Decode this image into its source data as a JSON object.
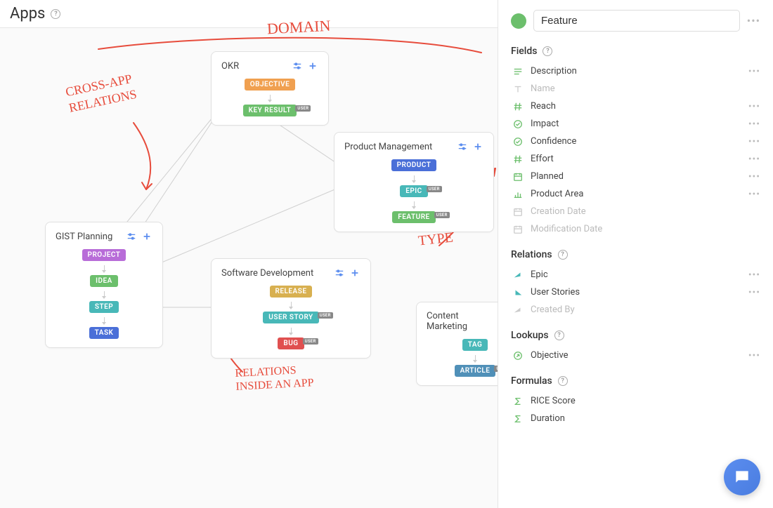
{
  "header": {
    "title": "Apps"
  },
  "annotations": {
    "domain": "DOMAIN",
    "cross_app": "CROSS-APP\nRELATIONS",
    "type": "TYPE",
    "inside_app": "RELATIONS\nINSIDE AN APP"
  },
  "cards": {
    "okr": {
      "title": "OKR",
      "chips": [
        {
          "label": "OBJECTIVE",
          "color": "#f0a050",
          "user": false
        },
        {
          "label": "KEY RESULT",
          "color": "#6cbf6c",
          "user": true
        }
      ]
    },
    "pm": {
      "title": "Product Management",
      "chips": [
        {
          "label": "PRODUCT",
          "color": "#4a6fd8",
          "user": false
        },
        {
          "label": "EPIC",
          "color": "#48b8b8",
          "user": true
        },
        {
          "label": "FEATURE",
          "color": "#6cbf6c",
          "user": true
        }
      ]
    },
    "gist": {
      "title": "GIST Planning",
      "chips": [
        {
          "label": "PROJECT",
          "color": "#b86cd8",
          "user": false
        },
        {
          "label": "IDEA",
          "color": "#6cbf6c",
          "user": false
        },
        {
          "label": "STEP",
          "color": "#48b8b8",
          "user": false
        },
        {
          "label": "TASK",
          "color": "#4a6fd8",
          "user": false
        }
      ]
    },
    "sw": {
      "title": "Software Development",
      "chips": [
        {
          "label": "RELEASE",
          "color": "#d8b050",
          "user": false
        },
        {
          "label": "USER STORY",
          "color": "#48b8b8",
          "user": true
        },
        {
          "label": "BUG",
          "color": "#e05050",
          "user": true
        }
      ]
    },
    "cm": {
      "title": "Content Marketing",
      "chips": [
        {
          "label": "TAG",
          "color": "#48b8b8",
          "user": false
        },
        {
          "label": "ARTICLE",
          "color": "#5090b8",
          "user": true
        }
      ]
    }
  },
  "side": {
    "dot_color": "#6cbf6c",
    "title_value": "Feature",
    "sections": {
      "fields": {
        "title": "Fields",
        "items": [
          {
            "icon": "text-lines",
            "label": "Description",
            "color": "#6cbf6c",
            "muted": false,
            "more": true
          },
          {
            "icon": "text-t",
            "label": "Name",
            "color": "#ccc",
            "muted": true,
            "more": false
          },
          {
            "icon": "hash",
            "label": "Reach",
            "color": "#6cbf6c",
            "muted": false,
            "more": true
          },
          {
            "icon": "check-circle",
            "label": "Impact",
            "color": "#6cbf6c",
            "muted": false,
            "more": true
          },
          {
            "icon": "check-circle",
            "label": "Confidence",
            "color": "#6cbf6c",
            "muted": false,
            "more": true
          },
          {
            "icon": "hash",
            "label": "Effort",
            "color": "#6cbf6c",
            "muted": false,
            "more": true
          },
          {
            "icon": "calendar",
            "label": "Planned",
            "color": "#6cbf6c",
            "muted": false,
            "more": true
          },
          {
            "icon": "bars",
            "label": "Product Area",
            "color": "#6cbf6c",
            "muted": false,
            "more": true
          },
          {
            "icon": "calendar",
            "label": "Creation Date",
            "color": "#ccc",
            "muted": true,
            "more": false
          },
          {
            "icon": "calendar",
            "label": "Modification Date",
            "color": "#ccc",
            "muted": true,
            "more": false
          }
        ]
      },
      "relations": {
        "title": "Relations",
        "items": [
          {
            "icon": "rel-up",
            "label": "Epic",
            "color": "#48b8b8",
            "muted": false,
            "more": true
          },
          {
            "icon": "rel-down",
            "label": "User Stories",
            "color": "#48b8b8",
            "muted": false,
            "more": true
          },
          {
            "icon": "rel-up",
            "label": "Created By",
            "color": "#ccc",
            "muted": true,
            "more": false
          }
        ]
      },
      "lookups": {
        "title": "Lookups",
        "items": [
          {
            "icon": "lookup",
            "label": "Objective",
            "color": "#6cbf6c",
            "muted": false,
            "more": true
          }
        ]
      },
      "formulas": {
        "title": "Formulas",
        "items": [
          {
            "icon": "sigma",
            "label": "RICE Score",
            "color": "#6cbf6c",
            "muted": false,
            "more": false
          },
          {
            "icon": "sigma",
            "label": "Duration",
            "color": "#6cbf6c",
            "muted": false,
            "more": false
          }
        ]
      }
    }
  }
}
